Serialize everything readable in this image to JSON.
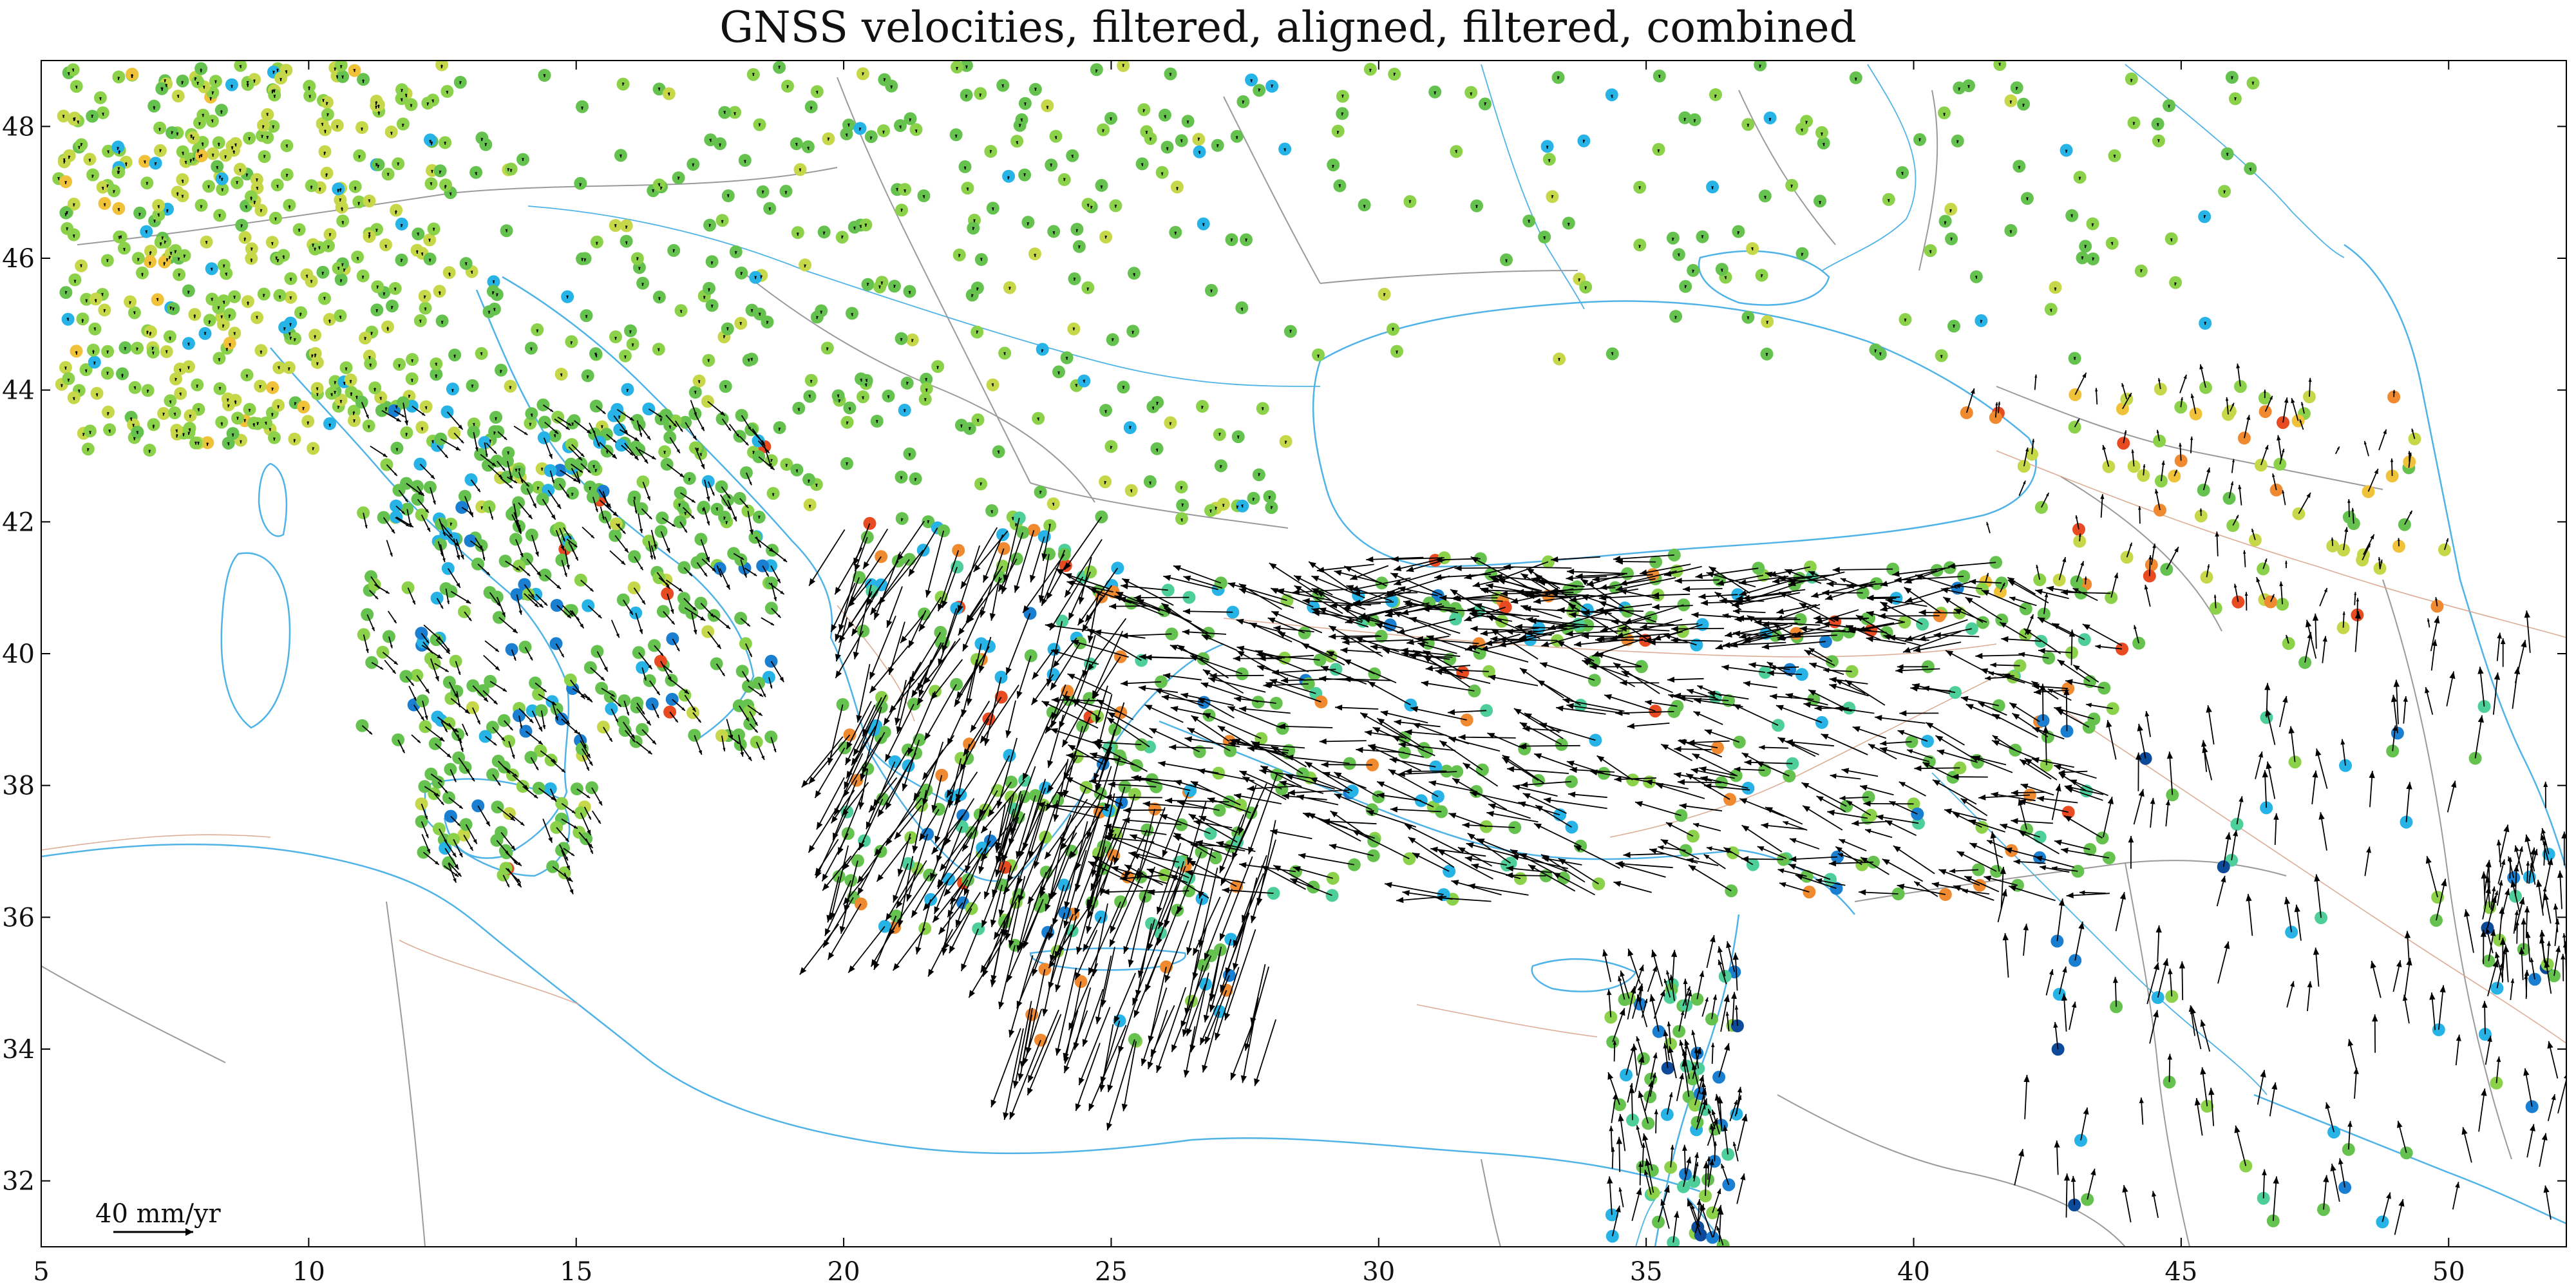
{
  "title": "GNSS velocities, filtered, aligned, filtered, combined",
  "x_axis": {
    "ticks": [
      "5",
      "10",
      "15",
      "20",
      "25",
      "30",
      "35",
      "40",
      "45",
      "50"
    ]
  },
  "y_axis": {
    "ticks": [
      "32",
      "34",
      "36",
      "38",
      "40",
      "42",
      "44",
      "46",
      "48"
    ]
  },
  "scale_bar": {
    "label": "40 mm/yr"
  },
  "colors": {
    "frame": "#000000",
    "coastline": "#4fb3e8",
    "border": "#9a9a9a",
    "fault": "#d9a48a",
    "arrow": "#000000",
    "station_palette": [
      "#66c24f",
      "#8bd14a",
      "#c6d84a",
      "#f0c23a",
      "#f08a30",
      "#e84a22",
      "#c81e1e",
      "#27b3e6",
      "#1a7fd0",
      "#0e4a9a",
      "#4ecf9a"
    ]
  },
  "map_extent": {
    "lon": [
      5,
      52.2
    ],
    "lat": [
      31,
      49
    ]
  }
}
